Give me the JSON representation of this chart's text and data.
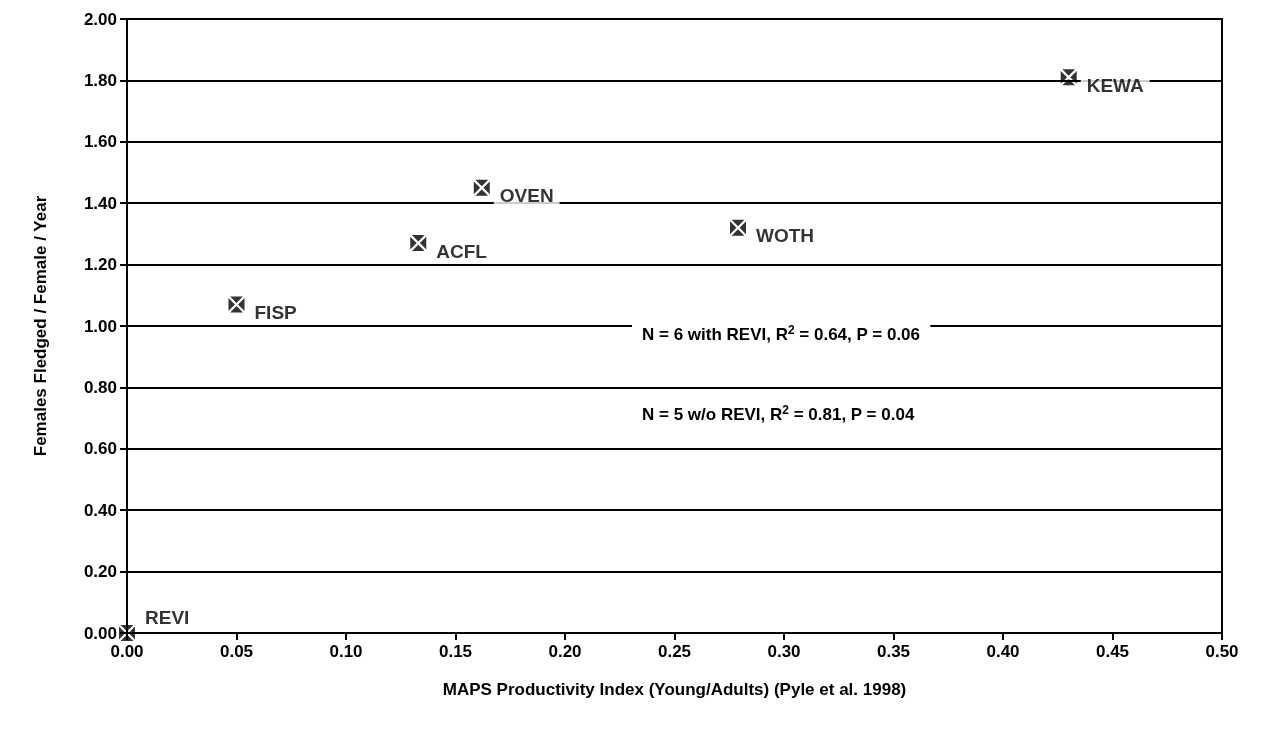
{
  "chart_data": {
    "type": "scatter",
    "xlabel": "MAPS Productivity Index (Young/Adults) (Pyle et al. 1998)",
    "ylabel": "Females Fledged / Female / Year",
    "x": [
      0,
      0.05,
      0.133,
      0.162,
      0.279,
      0.43
    ],
    "series": [
      {
        "color": "#000000",
        "values": [
          0,
          1.07,
          1.27,
          1.45,
          1.32,
          1.81
        ],
        "value_labels": [
          "REVI",
          "FISP",
          "ACFL",
          "OVEN",
          "WOTH",
          "KEWA"
        ]
      }
    ],
    "marker": "cross",
    "xlim": [
      0,
      0.5
    ],
    "xticks": [
      {
        "value": 0,
        "label": "0.00"
      },
      {
        "value": 0.05,
        "label": "0.05"
      },
      {
        "value": 0.1,
        "label": "0.10"
      },
      {
        "value": 0.15,
        "label": "0.15"
      },
      {
        "value": 0.2,
        "label": "0.20"
      },
      {
        "value": 0.25,
        "label": "0.25"
      },
      {
        "value": 0.3,
        "label": "0.30"
      },
      {
        "value": 0.35,
        "label": "0.35"
      },
      {
        "value": 0.4,
        "label": "0.40"
      },
      {
        "value": 0.45,
        "label": "0.45"
      },
      {
        "value": 0.5,
        "label": "0.50"
      }
    ],
    "ylim": [
      0,
      2
    ],
    "yticks": [
      {
        "value": 0,
        "label": "0.00"
      },
      {
        "value": 0.2,
        "label": "0.20"
      },
      {
        "value": 0.4,
        "label": "0.40"
      },
      {
        "value": 0.6,
        "label": "0.60"
      },
      {
        "value": 0.8,
        "label": "0.80"
      },
      {
        "value": 1,
        "label": "1.00"
      },
      {
        "value": 1.2,
        "label": "1.20"
      },
      {
        "value": 1.4,
        "label": "1.40"
      },
      {
        "value": 1.6,
        "label": "1.60"
      },
      {
        "value": 1.8,
        "label": "1.80"
      },
      {
        "value": 2,
        "label": "2.00"
      }
    ],
    "grid": "y",
    "annotations": [
      "N = 6 with REVI, R$^{2}$ = 0.64, P = 0.06",
      "N = 5 w/o REVI, R$^{2}$ = 0.81, P = 0.04"
    ]
  }
}
